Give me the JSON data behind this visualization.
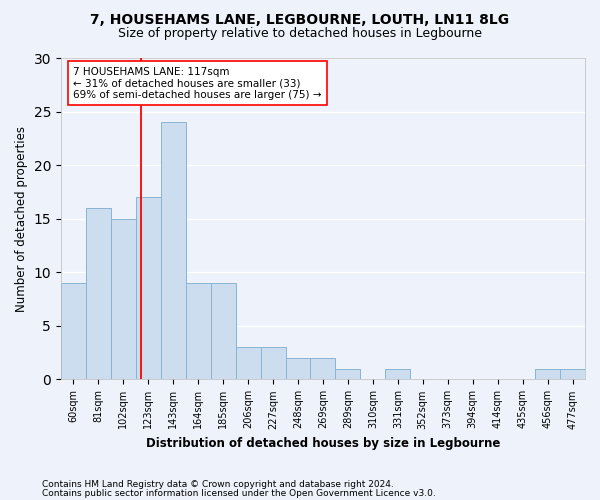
{
  "title": "7, HOUSEHAMS LANE, LEGBOURNE, LOUTH, LN11 8LG",
  "subtitle": "Size of property relative to detached houses in Legbourne",
  "xlabel": "Distribution of detached houses by size in Legbourne",
  "ylabel": "Number of detached properties",
  "bar_labels": [
    "60sqm",
    "81sqm",
    "102sqm",
    "123sqm",
    "143sqm",
    "164sqm",
    "185sqm",
    "206sqm",
    "227sqm",
    "248sqm",
    "269sqm",
    "289sqm",
    "310sqm",
    "331sqm",
    "352sqm",
    "373sqm",
    "394sqm",
    "414sqm",
    "435sqm",
    "456sqm",
    "477sqm"
  ],
  "bar_values": [
    9,
    16,
    15,
    17,
    24,
    9,
    9,
    3,
    3,
    2,
    2,
    1,
    0,
    1,
    0,
    0,
    0,
    0,
    0,
    1,
    1
  ],
  "bar_color": "#ccddf0",
  "bar_edgecolor": "#8ab4d4",
  "ylim": [
    0,
    30
  ],
  "yticks": [
    0,
    5,
    10,
    15,
    20,
    25,
    30
  ],
  "annotation_lines": [
    "7 HOUSEHAMS LANE: 117sqm",
    "← 31% of detached houses are smaller (33)",
    "69% of semi-detached houses are larger (75) →"
  ],
  "footer1": "Contains HM Land Registry data © Crown copyright and database right 2024.",
  "footer2": "Contains public sector information licensed under the Open Government Licence v3.0.",
  "background_color": "#eef2fa",
  "grid_color": "#ffffff"
}
